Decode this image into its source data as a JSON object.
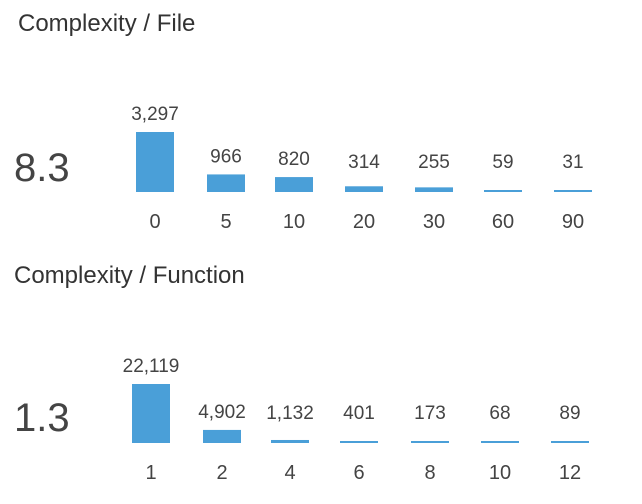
{
  "accent_color": "#4a9fd8",
  "chart_data": [
    {
      "type": "bar",
      "title": "Complexity / File",
      "summary_value": "8.3",
      "categories": [
        "0",
        "5",
        "10",
        "20",
        "30",
        "60",
        "90"
      ],
      "values": [
        3297,
        966,
        820,
        314,
        255,
        59,
        31
      ],
      "value_labels": [
        "3,297",
        "966",
        "820",
        "314",
        "255",
        "59",
        "31"
      ]
    },
    {
      "type": "bar",
      "title": "Complexity / Function",
      "summary_value": "1.3",
      "categories": [
        "1",
        "2",
        "4",
        "6",
        "8",
        "10",
        "12"
      ],
      "values": [
        22119,
        4902,
        1132,
        401,
        173,
        68,
        89
      ],
      "value_labels": [
        "22,119",
        "4,902",
        "1,132",
        "401",
        "173",
        "68",
        "89"
      ]
    }
  ]
}
